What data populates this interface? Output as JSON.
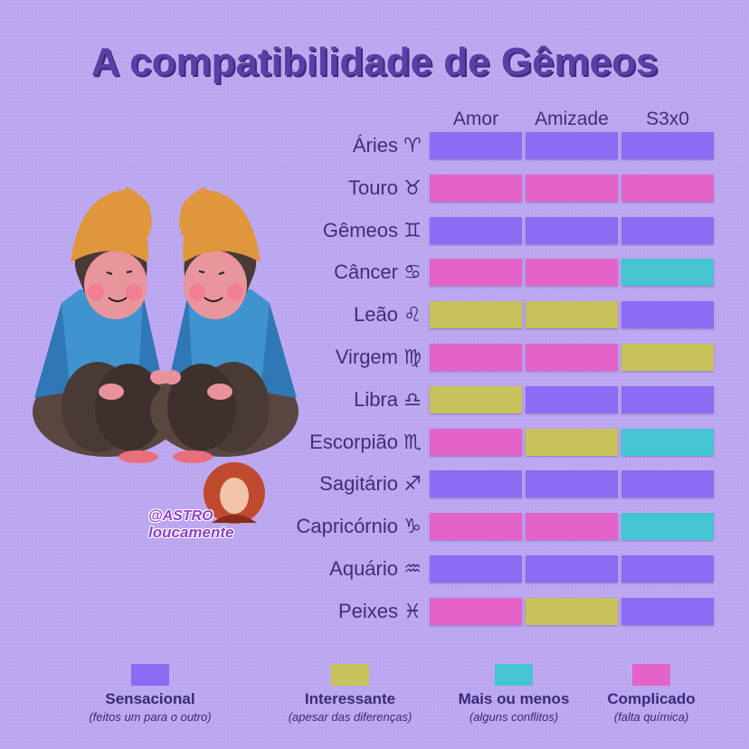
{
  "title": "A compatibilidade de Gêmeos",
  "columns": [
    "Amor",
    "Amizade",
    "S3x0"
  ],
  "colors": {
    "sensacional": "#8c6cf2",
    "interessante": "#c8c25a",
    "mais_ou_menos": "#45c4d2",
    "complicado": "#e363c9"
  },
  "rows": [
    {
      "sign": "Áries",
      "symbol": "♈",
      "values": [
        "sensacional",
        "sensacional",
        "sensacional"
      ]
    },
    {
      "sign": "Touro",
      "symbol": "♉",
      "values": [
        "complicado",
        "complicado",
        "complicado"
      ]
    },
    {
      "sign": "Gêmeos",
      "symbol": "♊",
      "values": [
        "sensacional",
        "sensacional",
        "sensacional"
      ]
    },
    {
      "sign": "Câncer",
      "symbol": "♋",
      "values": [
        "complicado",
        "complicado",
        "mais_ou_menos"
      ]
    },
    {
      "sign": "Leão",
      "symbol": "♌",
      "values": [
        "interessante",
        "interessante",
        "sensacional"
      ]
    },
    {
      "sign": "Virgem",
      "symbol": "♍",
      "values": [
        "complicado",
        "complicado",
        "interessante"
      ]
    },
    {
      "sign": "Libra",
      "symbol": "♎",
      "values": [
        "interessante",
        "sensacional",
        "sensacional"
      ]
    },
    {
      "sign": "Escorpião",
      "symbol": "♏",
      "values": [
        "complicado",
        "interessante",
        "mais_ou_menos"
      ]
    },
    {
      "sign": "Sagitário",
      "symbol": "♐",
      "values": [
        "sensacional",
        "sensacional",
        "sensacional"
      ]
    },
    {
      "sign": "Capricórnio",
      "symbol": "♑",
      "values": [
        "complicado",
        "complicado",
        "mais_ou_menos"
      ]
    },
    {
      "sign": "Aquário",
      "symbol": "♒",
      "values": [
        "sensacional",
        "sensacional",
        "sensacional"
      ]
    },
    {
      "sign": "Peixes",
      "symbol": "♓",
      "values": [
        "complicado",
        "interessante",
        "sensacional"
      ]
    }
  ],
  "legend": [
    {
      "key": "sensacional",
      "name": "Sensacional",
      "desc": "(feitos um para o outro)"
    },
    {
      "key": "interessante",
      "name": "Interessante",
      "desc": "(apesar das diferenças)"
    },
    {
      "key": "mais_ou_menos",
      "name": "Mais ou menos",
      "desc": "(alguns conflitos)"
    },
    {
      "key": "complicado",
      "name": "Complicado",
      "desc": "(falta química)"
    }
  ],
  "badge": {
    "line1": "@ASTRO",
    "line2": "loucamente"
  }
}
